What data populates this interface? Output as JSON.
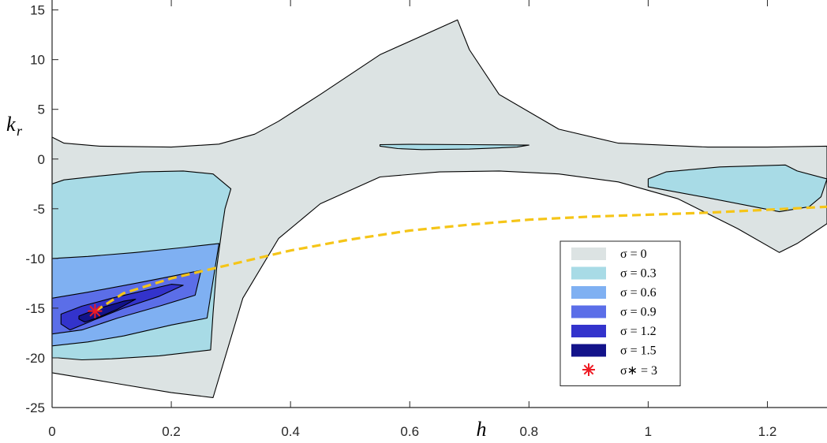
{
  "chart_data": {
    "type": "contour",
    "xlabel": "h",
    "ylabel": "k_r",
    "xlim": [
      0,
      1.3
    ],
    "ylim": [
      -25,
      16
    ],
    "xticks": [
      {
        "value": 0,
        "label": "0"
      },
      {
        "value": 0.2,
        "label": "0.2"
      },
      {
        "value": 0.4,
        "label": "0.4"
      },
      {
        "value": 0.6,
        "label": "0.6"
      },
      {
        "value": 0.8,
        "label": "0.8"
      },
      {
        "value": 1.0,
        "label": "1"
      },
      {
        "value": 1.2,
        "label": "1.2"
      }
    ],
    "yticks": [
      {
        "value": 15,
        "label": "15"
      },
      {
        "value": 10,
        "label": "10"
      },
      {
        "value": 5,
        "label": "5"
      },
      {
        "value": 0,
        "label": "0"
      },
      {
        "value": -5,
        "label": "-5"
      },
      {
        "value": -10,
        "label": "-10"
      },
      {
        "value": -15,
        "label": "-15"
      },
      {
        "value": -20,
        "label": "-20"
      },
      {
        "value": -25,
        "label": "-25"
      }
    ],
    "legend_position": "lower-right",
    "levels": [
      {
        "label": "σ = 0",
        "color": "#dce3e3",
        "regions": [
          [
            [
              0,
              2.2
            ],
            [
              0.02,
              1.6
            ],
            [
              0.08,
              1.3
            ],
            [
              0.2,
              1.2
            ],
            [
              0.28,
              1.5
            ],
            [
              0.34,
              2.5
            ],
            [
              0.38,
              3.8
            ],
            [
              0.45,
              6.5
            ],
            [
              0.55,
              10.5
            ],
            [
              0.68,
              14
            ],
            [
              0.7,
              11
            ],
            [
              0.75,
              6.5
            ],
            [
              0.85,
              3
            ],
            [
              0.95,
              1.6
            ],
            [
              1.1,
              1.2
            ],
            [
              1.2,
              1.2
            ],
            [
              1.3,
              1.3
            ],
            [
              1.3,
              -6.5
            ],
            [
              1.25,
              -8.5
            ],
            [
              1.22,
              -9.4
            ],
            [
              1.15,
              -7
            ],
            [
              1.05,
              -4
            ],
            [
              0.95,
              -2.3
            ],
            [
              0.85,
              -1.5
            ],
            [
              0.75,
              -1.2
            ],
            [
              0.65,
              -1.3
            ],
            [
              0.55,
              -1.8
            ],
            [
              0.45,
              -4.5
            ],
            [
              0.38,
              -8
            ],
            [
              0.32,
              -14
            ],
            [
              0.27,
              -24
            ],
            [
              0.2,
              -23.5
            ],
            [
              0.1,
              -22.5
            ],
            [
              0.05,
              -22
            ],
            [
              0,
              -21.5
            ]
          ]
        ]
      },
      {
        "label": "σ = 0.3",
        "color": "#a8dbe6",
        "regions": [
          [
            [
              0,
              -2.5
            ],
            [
              0.02,
              -2.1
            ],
            [
              0.08,
              -1.7
            ],
            [
              0.15,
              -1.3
            ],
            [
              0.22,
              -1.2
            ],
            [
              0.27,
              -1.5
            ],
            [
              0.3,
              -3
            ],
            [
              0.29,
              -5
            ],
            [
              0.285,
              -7
            ],
            [
              0.276,
              -11
            ],
            [
              0.27,
              -15.5
            ],
            [
              0.266,
              -19.2
            ],
            [
              0.18,
              -19.8
            ],
            [
              0.1,
              -20.1
            ],
            [
              0.05,
              -20.2
            ],
            [
              0.01,
              -20
            ],
            [
              0,
              -20
            ]
          ],
          [
            [
              0.55,
              1.45
            ],
            [
              0.6,
              1.48
            ],
            [
              0.7,
              1.45
            ],
            [
              0.8,
              1.4
            ],
            [
              0.78,
              1.2
            ],
            [
              0.7,
              1.0
            ],
            [
              0.62,
              0.95
            ],
            [
              0.58,
              1.05
            ],
            [
              0.55,
              1.3
            ]
          ],
          [
            [
              1.23,
              -0.6
            ],
            [
              1.25,
              -1.2
            ],
            [
              1.3,
              -2
            ],
            [
              1.29,
              -3.8
            ],
            [
              1.27,
              -4.8
            ],
            [
              1.22,
              -5.3
            ],
            [
              1.1,
              -3.9
            ],
            [
              1.0,
              -2.8
            ],
            [
              1.0,
              -2.0
            ],
            [
              1.03,
              -1.3
            ],
            [
              1.12,
              -0.8
            ]
          ]
        ]
      },
      {
        "label": "σ = 0.6",
        "color": "#7fb0f2",
        "regions": [
          [
            [
              0,
              -10
            ],
            [
              0.06,
              -9.8
            ],
            [
              0.14,
              -9.4
            ],
            [
              0.22,
              -8.9
            ],
            [
              0.28,
              -8.5
            ],
            [
              0.26,
              -16
            ],
            [
              0.2,
              -16.7
            ],
            [
              0.12,
              -17.8
            ],
            [
              0.06,
              -18.4
            ],
            [
              0,
              -18.8
            ]
          ]
        ]
      },
      {
        "label": "σ = 0.9",
        "color": "#5b6ee8",
        "regions": [
          [
            [
              0,
              -14
            ],
            [
              0.06,
              -13.4
            ],
            [
              0.14,
              -12.5
            ],
            [
              0.2,
              -11.8
            ],
            [
              0.25,
              -11.2
            ],
            [
              0.24,
              -13.7
            ],
            [
              0.18,
              -14.8
            ],
            [
              0.11,
              -16
            ],
            [
              0.05,
              -17.2
            ],
            [
              0,
              -17.6
            ]
          ]
        ]
      },
      {
        "label": "σ = 1.2",
        "color": "#3333cc",
        "regions": [
          [
            [
              0.015,
              -15.6
            ],
            [
              0.05,
              -14.8
            ],
            [
              0.1,
              -14
            ],
            [
              0.15,
              -13.3
            ],
            [
              0.2,
              -12.6
            ],
            [
              0.22,
              -12.7
            ],
            [
              0.18,
              -13.8
            ],
            [
              0.12,
              -15
            ],
            [
              0.07,
              -16.2
            ],
            [
              0.03,
              -17.2
            ],
            [
              0.015,
              -16.6
            ]
          ]
        ]
      },
      {
        "label": "σ = 1.5",
        "color": "#13138a",
        "regions": [
          [
            [
              0.045,
              -15.8
            ],
            [
              0.08,
              -15
            ],
            [
              0.12,
              -14.3
            ],
            [
              0.14,
              -14.1
            ],
            [
              0.11,
              -15.1
            ],
            [
              0.075,
              -16
            ],
            [
              0.055,
              -16.4
            ],
            [
              0.045,
              -16.1
            ]
          ]
        ]
      }
    ],
    "optimum": {
      "label": "σ∗ = 3",
      "x": 0.072,
      "y": -15.3,
      "color": "#ee1b24"
    },
    "trend_line": {
      "color": "#f5c518",
      "points": [
        [
          0.072,
          -15.3
        ],
        [
          0.12,
          -13.5
        ],
        [
          0.2,
          -12
        ],
        [
          0.3,
          -10.6
        ],
        [
          0.4,
          -9.2
        ],
        [
          0.5,
          -8.1
        ],
        [
          0.6,
          -7.2
        ],
        [
          0.7,
          -6.6
        ],
        [
          0.8,
          -6.1
        ],
        [
          0.9,
          -5.8
        ],
        [
          1.0,
          -5.6
        ],
        [
          1.1,
          -5.4
        ],
        [
          1.2,
          -5.1
        ],
        [
          1.3,
          -4.8
        ]
      ]
    }
  }
}
